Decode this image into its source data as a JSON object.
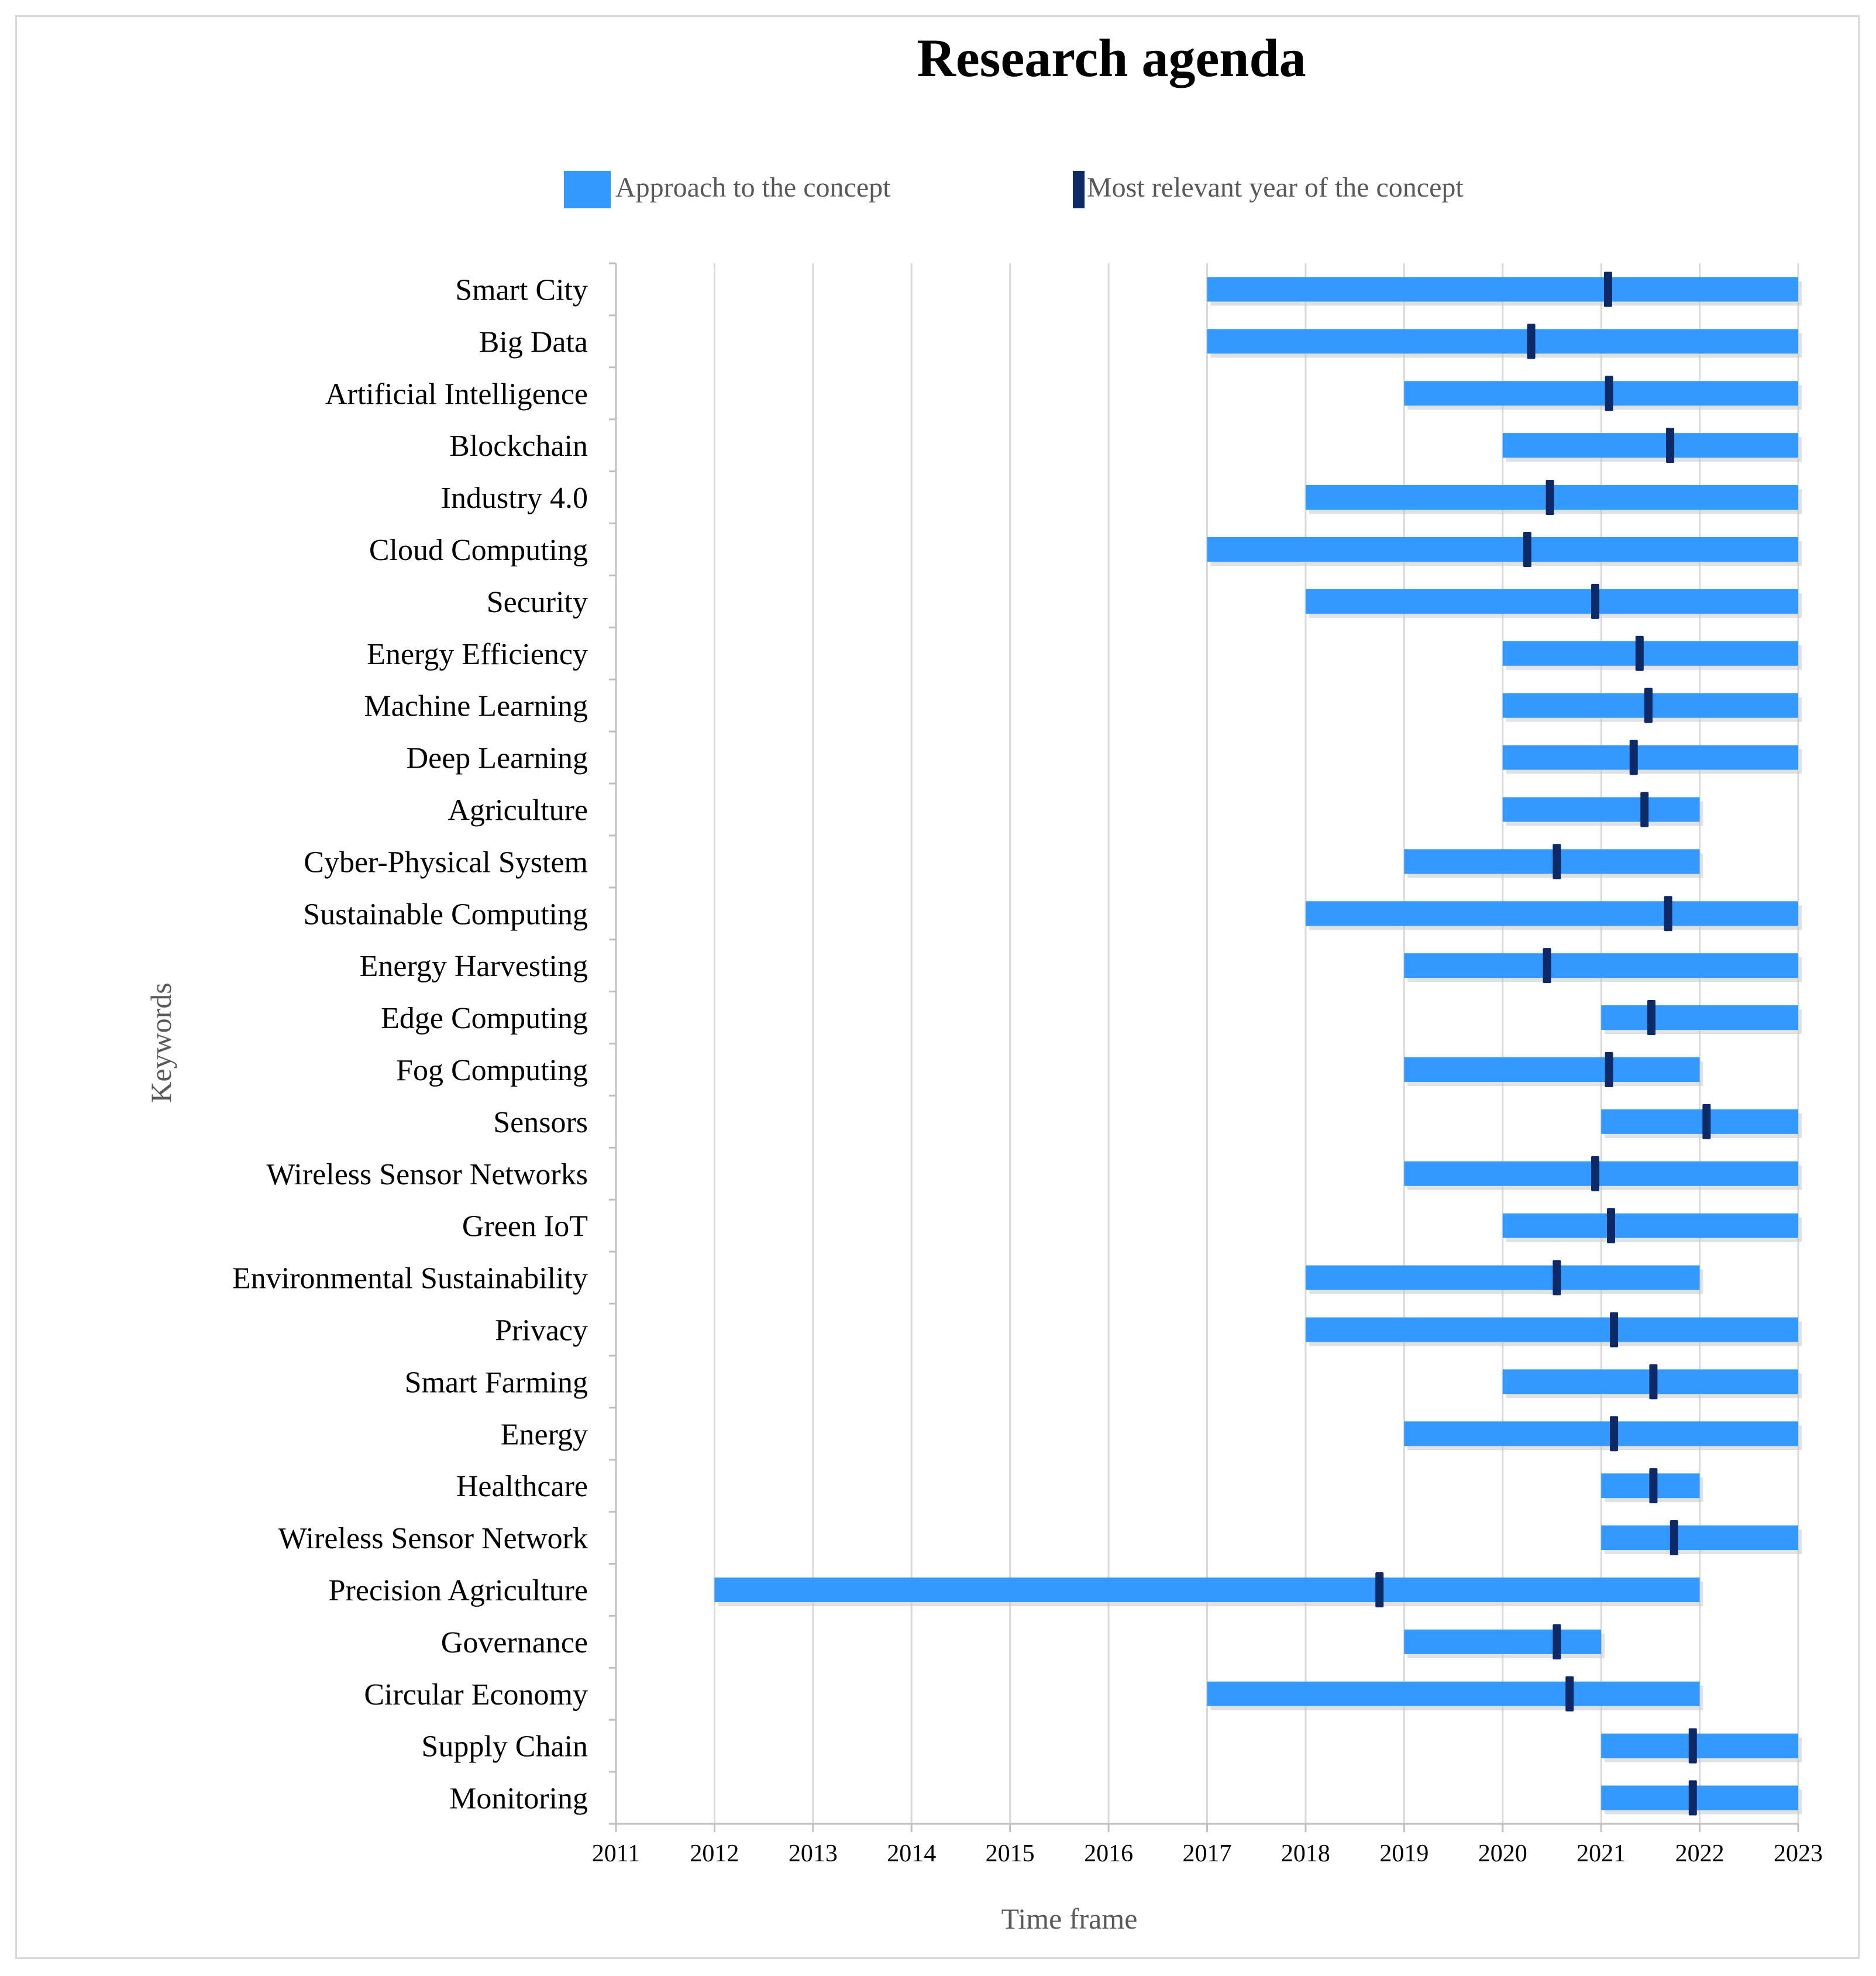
{
  "chart_data": {
    "type": "gantt",
    "title": "Research agenda",
    "xlabel": "Time frame",
    "ylabel": "Keywords",
    "xlim": [
      2011,
      2023
    ],
    "x_ticks": [
      "2011",
      "2012",
      "2013",
      "2014",
      "2015",
      "2016",
      "2017",
      "2018",
      "2019",
      "2020",
      "2021",
      "2022",
      "2023"
    ],
    "legend": {
      "position": "top",
      "entries": [
        {
          "label": "Approach to the concept",
          "color": "#3399ff"
        },
        {
          "label": "Most relevant year of the concept",
          "color": "#0d2a66"
        }
      ]
    },
    "series": [
      {
        "name": "Approach to the concept",
        "color": "#3399ff"
      },
      {
        "name": "Most relevant year of the concept",
        "color": "#0d2a66"
      }
    ],
    "items": [
      {
        "keyword": "Smart City",
        "start": 2017,
        "end": 2023,
        "peak": 2021.07
      },
      {
        "keyword": "Big Data",
        "start": 2017,
        "end": 2023,
        "peak": 2020.29
      },
      {
        "keyword": "Artificial Intelligence",
        "start": 2019,
        "end": 2023,
        "peak": 2021.08
      },
      {
        "keyword": "Blockchain",
        "start": 2020,
        "end": 2023,
        "peak": 2021.7
      },
      {
        "keyword": "Industry 4.0",
        "start": 2018,
        "end": 2023,
        "peak": 2020.48
      },
      {
        "keyword": "Cloud Computing",
        "start": 2017,
        "end": 2023,
        "peak": 2020.25
      },
      {
        "keyword": "Security",
        "start": 2018,
        "end": 2023,
        "peak": 2020.94
      },
      {
        "keyword": "Energy Efficiency",
        "start": 2020,
        "end": 2023,
        "peak": 2021.39
      },
      {
        "keyword": "Machine Learning",
        "start": 2020,
        "end": 2023,
        "peak": 2021.48
      },
      {
        "keyword": "Deep Learning",
        "start": 2020,
        "end": 2023,
        "peak": 2021.33
      },
      {
        "keyword": "Agriculture",
        "start": 2020,
        "end": 2022,
        "peak": 2021.44
      },
      {
        "keyword": "Cyber-Physical System",
        "start": 2019,
        "end": 2022,
        "peak": 2020.55
      },
      {
        "keyword": "Sustainable Computing",
        "start": 2018,
        "end": 2023,
        "peak": 2021.68
      },
      {
        "keyword": "Energy Harvesting",
        "start": 2019,
        "end": 2023,
        "peak": 2020.45
      },
      {
        "keyword": "Edge Computing",
        "start": 2021,
        "end": 2023,
        "peak": 2021.51
      },
      {
        "keyword": "Fog Computing",
        "start": 2019,
        "end": 2022,
        "peak": 2021.08
      },
      {
        "keyword": "Sensors",
        "start": 2021,
        "end": 2023,
        "peak": 2022.07
      },
      {
        "keyword": "Wireless Sensor Networks",
        "start": 2019,
        "end": 2023,
        "peak": 2020.94
      },
      {
        "keyword": "Green IoT",
        "start": 2020,
        "end": 2023,
        "peak": 2021.1
      },
      {
        "keyword": "Environmental Sustainability",
        "start": 2018,
        "end": 2022,
        "peak": 2020.55
      },
      {
        "keyword": "Privacy",
        "start": 2018,
        "end": 2023,
        "peak": 2021.13
      },
      {
        "keyword": "Smart Farming",
        "start": 2020,
        "end": 2023,
        "peak": 2021.53
      },
      {
        "keyword": "Energy",
        "start": 2019,
        "end": 2023,
        "peak": 2021.13
      },
      {
        "keyword": "Healthcare",
        "start": 2021,
        "end": 2022,
        "peak": 2021.53
      },
      {
        "keyword": "Wireless Sensor Network",
        "start": 2021,
        "end": 2023,
        "peak": 2021.74
      },
      {
        "keyword": "Precision Agriculture",
        "start": 2012,
        "end": 2022,
        "peak": 2018.75
      },
      {
        "keyword": "Governance",
        "start": 2019,
        "end": 2021,
        "peak": 2020.55
      },
      {
        "keyword": "Circular Economy",
        "start": 2017,
        "end": 2022,
        "peak": 2020.68
      },
      {
        "keyword": "Supply Chain",
        "start": 2021,
        "end": 2023,
        "peak": 2021.93
      },
      {
        "keyword": "Monitoring",
        "start": 2021,
        "end": 2023,
        "peak": 2021.93
      }
    ]
  }
}
